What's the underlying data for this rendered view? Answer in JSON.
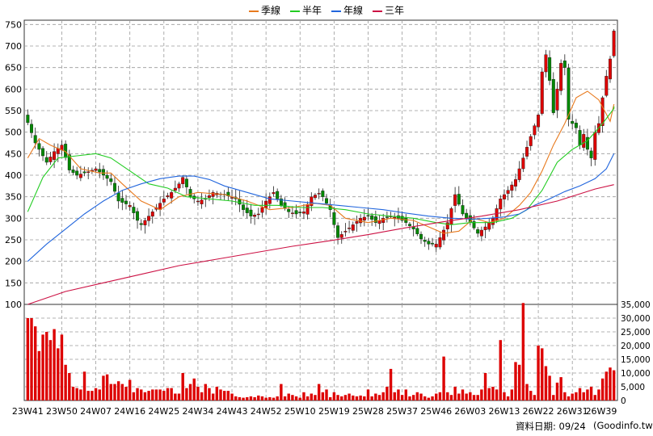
{
  "legend": [
    {
      "label": "季線",
      "color": "#e87a1e"
    },
    {
      "label": "半年",
      "color": "#22cc22"
    },
    {
      "label": "年線",
      "color": "#2266dd"
    },
    {
      "label": "三年",
      "color": "#cc1144"
    }
  ],
  "footer": {
    "date_label": "資料日期: 09/24",
    "source": "(Goodinfo.tw)"
  },
  "colors": {
    "up": "#dd0000",
    "down": "#008800",
    "volume": "#dd0000",
    "grid": "#9a9a9a"
  },
  "chart_data": [
    {
      "type": "candlestick",
      "x_tick_labels": [
        "23W41",
        "23W50",
        "24W07",
        "24W16",
        "24W25",
        "24W34",
        "24W43",
        "24W52",
        "25W10",
        "25W19",
        "25W28",
        "25W37",
        "25W46",
        "26W03",
        "26W13",
        "26W22",
        "26W31",
        "26W39"
      ],
      "y_ticks": [
        100,
        150,
        200,
        250,
        300,
        350,
        400,
        450,
        500,
        550,
        600,
        650,
        700,
        750
      ],
      "ylim": [
        100,
        760
      ],
      "grid": true,
      "weeks": 156,
      "close_path": [
        [
          0,
          540
        ],
        [
          1,
          522
        ],
        [
          3,
          475
        ],
        [
          6,
          430
        ],
        [
          8,
          455
        ],
        [
          10,
          470
        ],
        [
          12,
          412
        ],
        [
          14,
          400
        ],
        [
          17,
          408
        ],
        [
          19,
          415
        ],
        [
          21,
          400
        ],
        [
          23,
          385
        ],
        [
          25,
          340
        ],
        [
          28,
          330
        ],
        [
          30,
          295
        ],
        [
          31,
          285
        ],
        [
          33,
          305
        ],
        [
          35,
          325
        ],
        [
          37,
          345
        ],
        [
          39,
          360
        ],
        [
          41,
          380
        ],
        [
          42,
          395
        ],
        [
          44,
          350
        ],
        [
          46,
          340
        ],
        [
          48,
          345
        ],
        [
          50,
          360
        ],
        [
          53,
          355
        ],
        [
          56,
          345
        ],
        [
          58,
          320
        ],
        [
          60,
          305
        ],
        [
          62,
          310
        ],
        [
          64,
          340
        ],
        [
          66,
          360
        ],
        [
          68,
          330
        ],
        [
          70,
          315
        ],
        [
          72,
          310
        ],
        [
          74,
          315
        ],
        [
          76,
          350
        ],
        [
          78,
          358
        ],
        [
          79,
          350
        ],
        [
          81,
          320
        ],
        [
          82,
          285
        ],
        [
          83,
          255
        ],
        [
          85,
          270
        ],
        [
          87,
          285
        ],
        [
          89,
          300
        ],
        [
          91,
          305
        ],
        [
          93,
          290
        ],
        [
          95,
          300
        ],
        [
          97,
          305
        ],
        [
          99,
          300
        ],
        [
          101,
          290
        ],
        [
          103,
          275
        ],
        [
          105,
          252
        ],
        [
          107,
          240
        ],
        [
          109,
          240
        ],
        [
          110,
          255
        ],
        [
          112,
          290
        ],
        [
          114,
          355
        ],
        [
          116,
          310
        ],
        [
          118,
          290
        ],
        [
          120,
          265
        ],
        [
          122,
          280
        ],
        [
          124,
          300
        ],
        [
          126,
          345
        ],
        [
          128,
          365
        ],
        [
          130,
          390
        ],
        [
          132,
          440
        ],
        [
          134,
          490
        ],
        [
          136,
          540
        ],
        [
          137,
          640
        ],
        [
          138,
          680
        ],
        [
          139,
          620
        ],
        [
          140,
          545
        ],
        [
          141,
          600
        ],
        [
          142,
          660
        ],
        [
          143,
          650
        ],
        [
          144,
          530
        ],
        [
          146,
          510
        ],
        [
          147,
          470
        ],
        [
          148,
          495
        ],
        [
          149,
          460
        ],
        [
          150,
          440
        ],
        [
          151,
          500
        ],
        [
          152,
          520
        ],
        [
          153,
          580
        ],
        [
          154,
          630
        ],
        [
          155,
          670
        ],
        [
          156,
          735
        ]
      ],
      "series": [
        {
          "name": "季線",
          "color": "#e87a1e",
          "path": [
            [
              0,
              440
            ],
            [
              3,
              485
            ],
            [
              6,
              470
            ],
            [
              10,
              455
            ],
            [
              14,
              415
            ],
            [
              19,
              405
            ],
            [
              22,
              405
            ],
            [
              25,
              380
            ],
            [
              30,
              340
            ],
            [
              35,
              320
            ],
            [
              40,
              350
            ],
            [
              45,
              360
            ],
            [
              52,
              355
            ],
            [
              58,
              340
            ],
            [
              64,
              320
            ],
            [
              70,
              325
            ],
            [
              76,
              335
            ],
            [
              80,
              330
            ],
            [
              84,
              300
            ],
            [
              90,
              290
            ],
            [
              96,
              300
            ],
            [
              102,
              295
            ],
            [
              106,
              280
            ],
            [
              110,
              265
            ],
            [
              114,
              270
            ],
            [
              118,
              300
            ],
            [
              122,
              290
            ],
            [
              126,
              300
            ],
            [
              130,
              330
            ],
            [
              133,
              360
            ],
            [
              136,
              410
            ],
            [
              139,
              470
            ],
            [
              142,
              520
            ],
            [
              145,
              580
            ],
            [
              148,
              595
            ],
            [
              151,
              575
            ],
            [
              154,
              525
            ],
            [
              156,
              565
            ]
          ]
        },
        {
          "name": "半年",
          "color": "#22cc22",
          "path": [
            [
              0,
              315
            ],
            [
              4,
              395
            ],
            [
              8,
              440
            ],
            [
              13,
              445
            ],
            [
              18,
              450
            ],
            [
              22,
              440
            ],
            [
              27,
              410
            ],
            [
              32,
              380
            ],
            [
              37,
              370
            ],
            [
              42,
              350
            ],
            [
              48,
              345
            ],
            [
              54,
              340
            ],
            [
              60,
              330
            ],
            [
              66,
              330
            ],
            [
              72,
              325
            ],
            [
              78,
              325
            ],
            [
              84,
              320
            ],
            [
              90,
              310
            ],
            [
              96,
              305
            ],
            [
              102,
              300
            ],
            [
              108,
              290
            ],
            [
              112,
              285
            ],
            [
              117,
              290
            ],
            [
              123,
              290
            ],
            [
              128,
              300
            ],
            [
              132,
              320
            ],
            [
              136,
              365
            ],
            [
              140,
              430
            ],
            [
              144,
              460
            ],
            [
              148,
              480
            ],
            [
              152,
              520
            ],
            [
              155,
              555
            ],
            [
              156,
              560
            ]
          ]
        },
        {
          "name": "年線",
          "color": "#2266dd",
          "path": [
            [
              0,
              200
            ],
            [
              5,
              240
            ],
            [
              10,
              275
            ],
            [
              15,
              310
            ],
            [
              20,
              340
            ],
            [
              25,
              365
            ],
            [
              30,
              380
            ],
            [
              35,
              392
            ],
            [
              40,
              398
            ],
            [
              44,
              398
            ],
            [
              48,
              390
            ],
            [
              52,
              375
            ],
            [
              58,
              360
            ],
            [
              64,
              345
            ],
            [
              70,
              340
            ],
            [
              76,
              335
            ],
            [
              82,
              330
            ],
            [
              88,
              325
            ],
            [
              94,
              320
            ],
            [
              100,
              312
            ],
            [
              106,
              305
            ],
            [
              112,
              300
            ],
            [
              118,
              298
            ],
            [
              122,
              300
            ],
            [
              126,
              303
            ],
            [
              130,
              310
            ],
            [
              134,
              330
            ],
            [
              138,
              345
            ],
            [
              142,
              362
            ],
            [
              146,
              375
            ],
            [
              150,
              392
            ],
            [
              153,
              415
            ],
            [
              156,
              450
            ]
          ]
        },
        {
          "name": "三年",
          "color": "#cc1144",
          "path": [
            [
              0,
              100
            ],
            [
              10,
              130
            ],
            [
              20,
              150
            ],
            [
              30,
              170
            ],
            [
              40,
              190
            ],
            [
              50,
              205
            ],
            [
              60,
              220
            ],
            [
              70,
              235
            ],
            [
              80,
              248
            ],
            [
              90,
              262
            ],
            [
              100,
              278
            ],
            [
              110,
              292
            ],
            [
              120,
              305
            ],
            [
              130,
              320
            ],
            [
              140,
              340
            ],
            [
              150,
              368
            ],
            [
              156,
              378
            ]
          ]
        }
      ]
    },
    {
      "type": "bar",
      "y_ticks": [
        0,
        5000,
        10000,
        15000,
        20000,
        25000,
        30000,
        35000
      ],
      "ylim": [
        0,
        35000
      ],
      "values": [
        30000,
        30000,
        27000,
        18000,
        24000,
        25000,
        22000,
        26000,
        19000,
        24000,
        13000,
        10000,
        5000,
        4500,
        4000,
        10500,
        3500,
        3500,
        4500,
        4000,
        9000,
        9500,
        6000,
        6000,
        7000,
        6000,
        5000,
        7500,
        3000,
        4500,
        4000,
        3000,
        3500,
        4000,
        4000,
        4000,
        3500,
        4500,
        4500,
        2500,
        2500,
        10000,
        4500,
        6000,
        8000,
        5000,
        3000,
        6000,
        4500,
        2500,
        5000,
        4000,
        3500,
        3500,
        2500,
        1500,
        1200,
        1000,
        1200,
        1500,
        1200,
        1800,
        1500,
        1000,
        1200,
        1000,
        1500,
        6000,
        1500,
        2500,
        2000,
        1500,
        1000,
        3000,
        1500,
        2500,
        2000,
        6000,
        3000,
        4000,
        1200,
        3000,
        2000,
        1500,
        2000,
        2500,
        1800,
        1500,
        1800,
        1500,
        4000,
        1500,
        2500,
        2000,
        3000,
        5000,
        11500,
        3000,
        4000,
        2000,
        4000,
        1500,
        2000,
        3000,
        2500,
        1500,
        1000,
        1500,
        2500,
        3000,
        16000,
        3000,
        2000,
        5000,
        2500,
        4000,
        2500,
        3000,
        2000,
        2000,
        4000,
        10000,
        4500,
        5000,
        4000,
        22000,
        3000,
        1500,
        4000,
        14000,
        13000,
        35500,
        6000,
        3500,
        2000,
        20000,
        19000,
        12500,
        9000,
        2000,
        6500,
        8500,
        3000,
        1500,
        2500,
        3000,
        4500,
        3000,
        4000,
        5000,
        2000,
        4000,
        8000,
        10500,
        12000,
        11000,
        8000
      ]
    }
  ]
}
